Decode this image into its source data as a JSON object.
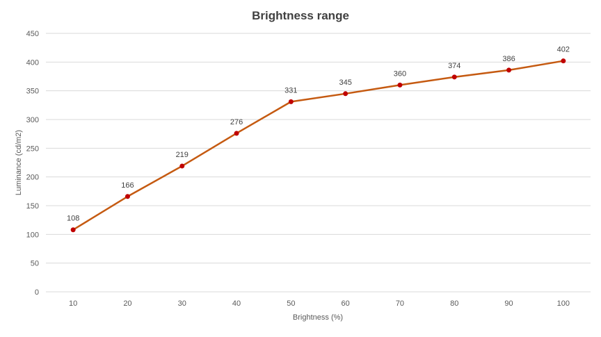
{
  "chart_data": {
    "type": "line",
    "title": "Brightness range",
    "xlabel": "Brightness (%)",
    "ylabel": "Luminance (cd/m2)",
    "categories": [
      "10",
      "20",
      "30",
      "40",
      "50",
      "60",
      "70",
      "80",
      "90",
      "100"
    ],
    "series": [
      {
        "values": [
          108,
          166,
          219,
          276,
          331,
          345,
          360,
          374,
          386,
          402
        ]
      }
    ],
    "ylim": [
      0,
      450
    ],
    "yticks": [
      0,
      50,
      100,
      150,
      200,
      250,
      300,
      350,
      400,
      450
    ],
    "grid": true,
    "legend": "none",
    "data_labels": true,
    "colors": {
      "line": "#c55a11",
      "marker": "#c00000",
      "grid": "#d9d9d9",
      "text": "#595959"
    }
  }
}
